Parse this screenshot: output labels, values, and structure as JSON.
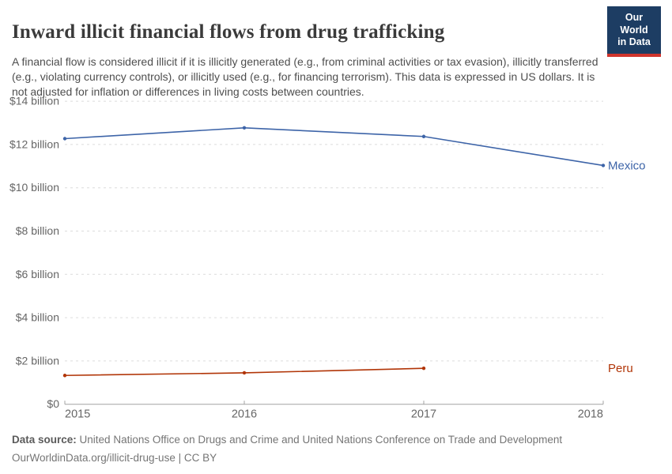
{
  "header": {
    "title": "Inward illicit financial flows from drug trafficking",
    "subtitle": "A financial flow is considered illicit if it is illicitly generated (e.g., from criminal activities or tax evasion), illicitly transferred (e.g., violating currency controls), or illicitly used (e.g., for financing terrorism). This data is expressed in US dollars. It is not adjusted for inflation or differences in living costs between countries.",
    "logo": {
      "line1": "Our World",
      "line2": "in Data",
      "bg_color": "#1d3d63",
      "accent_color": "#d0342c"
    }
  },
  "chart_data": {
    "type": "line",
    "x": [
      2015,
      2016,
      2017,
      2018
    ],
    "x_tick_labels": [
      "2015",
      "2016",
      "2017",
      "2018"
    ],
    "series": [
      {
        "name": "Mexico",
        "color": "#3d64a8",
        "values": [
          12.27,
          12.77,
          12.37,
          11.03
        ]
      },
      {
        "name": "Peru",
        "color": "#b13507",
        "values": [
          1.33,
          1.45,
          1.66,
          null
        ]
      }
    ],
    "ylim": [
      0,
      14
    ],
    "y_tick_step": 2,
    "y_tick_labels": [
      "$0",
      "$2 billion",
      "$4 billion",
      "$6 billion",
      "$8 billion",
      "$10 billion",
      "$12 billion",
      "$14 billion"
    ],
    "grid": "horizontal-dashed",
    "legend": "line-end-labels",
    "title": "Inward illicit financial flows from drug trafficking",
    "xlabel": "",
    "ylabel": ""
  },
  "footer": {
    "source_label": "Data source:",
    "source_text": "United Nations Office on Drugs and Crime and United Nations Conference on Trade and Development",
    "citation": "OurWorldinData.org/illicit-drug-use | CC BY"
  }
}
